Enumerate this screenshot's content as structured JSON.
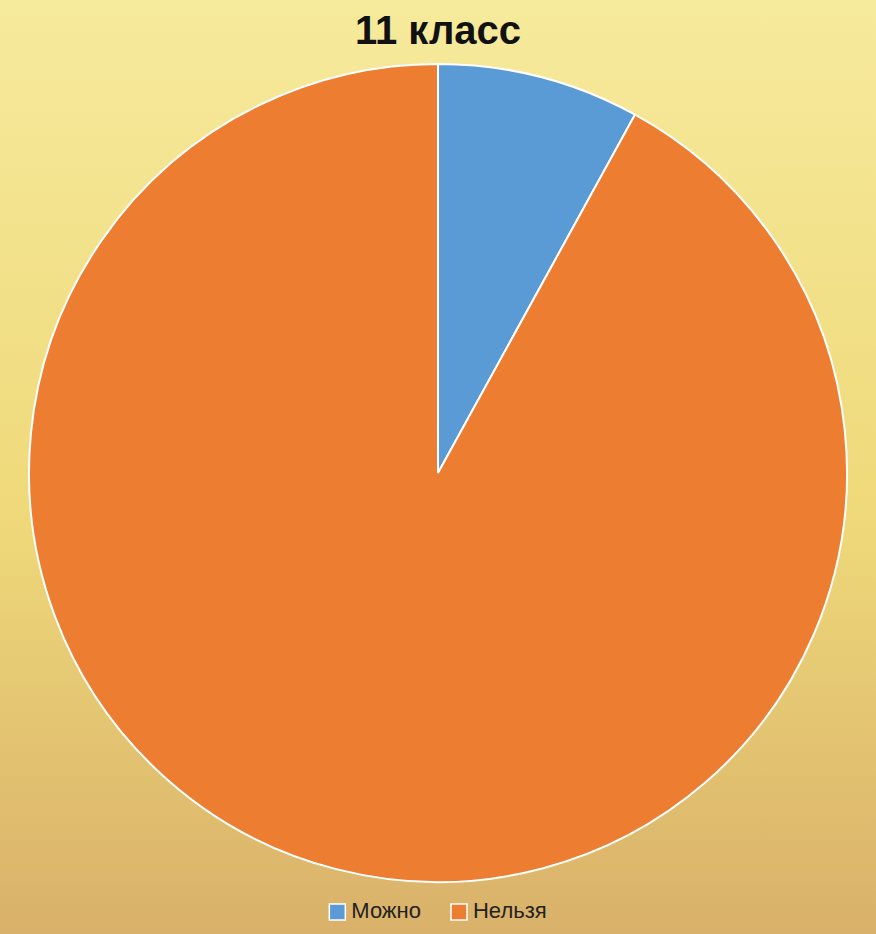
{
  "chart_data": {
    "type": "pie",
    "title": "11 класс",
    "categories": [
      "Можно",
      "Нельзя"
    ],
    "values": [
      8,
      92
    ],
    "colors": [
      "#5b9bd5",
      "#ed7d31"
    ],
    "legend": "bottom"
  }
}
